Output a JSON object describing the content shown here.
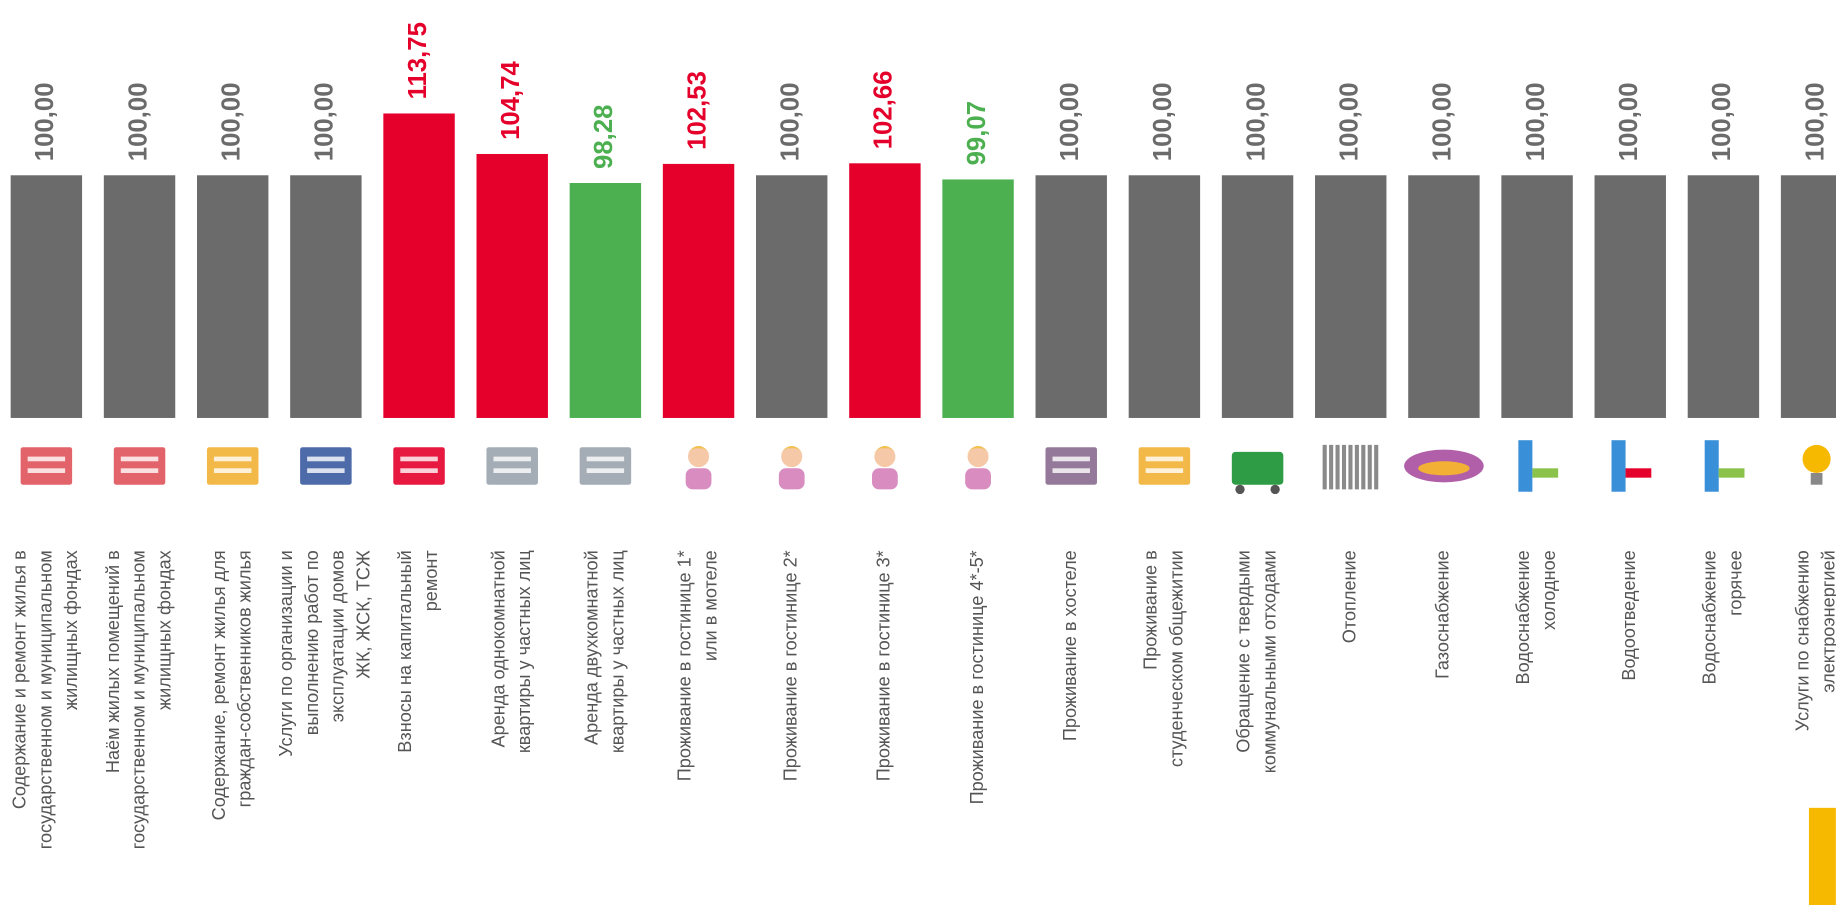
{
  "chart_data": {
    "type": "bar",
    "categories": [
      "Содержание и ремонт жилья в\nгосударственном и муниципальном\nжилищных фондах",
      "Наём жилых помещений в\nгосударственном и муниципальном\nжилищных фондах",
      "Содержание, ремонт жилья для\nграждан-собственников жилья",
      "Услуги по организации и\nвыполнению работ по\nэксплуатации домов\nЖК, ЖСК, ТСЖ",
      "Взносы на капитальный\nремонт",
      "Аренда однокомнатной\nквартиры у частных лиц",
      "Аренда двухкомнатной\nквартиры у частных лиц",
      "Проживание в гостинице 1*\nили в мотеле",
      "Проживание в гостинице 2*",
      "Проживание в гостинице 3*",
      "Проживание в гостинице 4*-5*",
      "Проживание в хостеле",
      "Проживание в\nстуденческом общежитии",
      "Обращение с твердыми\nкоммунальными отходами",
      "Отопление",
      "Газоснабжение",
      "Водоснабжение\nхолодное",
      "Водоотведение",
      "Водоснабжение\nгорячее",
      "Услуги по снабжению\nэлектроэнергией"
    ],
    "values": [
      100,
      100,
      100,
      100,
      113.75,
      104.74,
      98.28,
      102.53,
      100,
      102.66,
      99.07,
      100,
      100,
      100,
      100,
      100,
      100,
      100,
      100,
      100
    ],
    "value_labels": [
      "100,00",
      "100,00",
      "100,00",
      "100,00",
      "113,75",
      "104,74",
      "98,28",
      "102,53",
      "100,00",
      "102,66",
      "99,07",
      "100,00",
      "100,00",
      "100,00",
      "100,00",
      "100,00",
      "100,00",
      "100,00",
      "100,00",
      "100,00"
    ],
    "colors": [
      "#6b6b6b",
      "#6b6b6b",
      "#6b6b6b",
      "#6b6b6b",
      "#e4002b",
      "#e4002b",
      "#4caf50",
      "#e4002b",
      "#6b6b6b",
      "#e4002b",
      "#4caf50",
      "#6b6b6b",
      "#6b6b6b",
      "#6b6b6b",
      "#6b6b6b",
      "#6b6b6b",
      "#6b6b6b",
      "#6b6b6b",
      "#6b6b6b",
      "#6b6b6b"
    ],
    "ylim": [
      46,
      139
    ]
  }
}
